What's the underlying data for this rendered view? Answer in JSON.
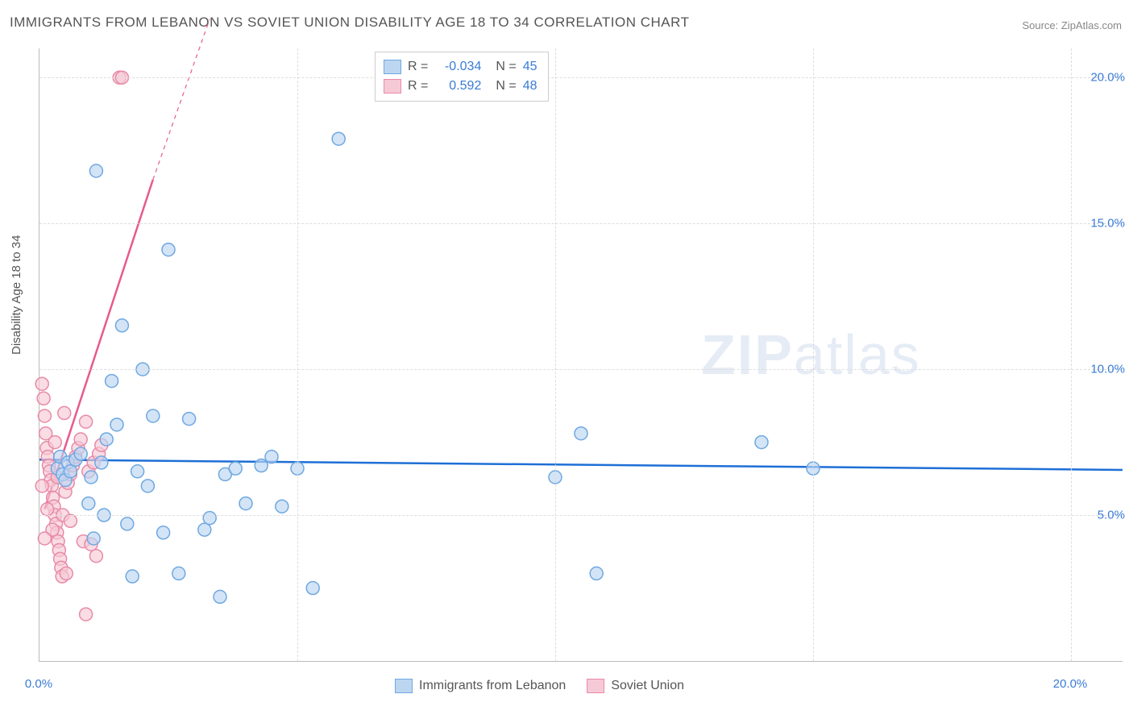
{
  "title": "IMMIGRANTS FROM LEBANON VS SOVIET UNION DISABILITY AGE 18 TO 34 CORRELATION CHART",
  "source": "Source: ZipAtlas.com",
  "yaxis_label": "Disability Age 18 to 34",
  "watermark": {
    "bold": "ZIP",
    "light": "atlas"
  },
  "chart": {
    "type": "scatter",
    "background_color": "#ffffff",
    "grid_color": "#dddddd",
    "axis_color": "#bbbbbb",
    "xlim": [
      0,
      21
    ],
    "ylim": [
      0,
      21
    ],
    "xticks": [
      0,
      5,
      10,
      15,
      20
    ],
    "yticks": [
      5,
      10,
      15,
      20
    ],
    "xtick_labels": [
      "0.0%",
      "",
      "",
      "",
      "20.0%"
    ],
    "ytick_labels": [
      "5.0%",
      "10.0%",
      "15.0%",
      "20.0%"
    ],
    "xtick_major_labels": {
      "0": "0.0%",
      "20": "20.0%"
    },
    "marker_radius": 8,
    "marker_stroke_width": 1.5,
    "series": [
      {
        "name": "Immigrants from Lebanon",
        "color_fill": "#bcd6f2",
        "color_stroke": "#6fa8e0",
        "r": -0.034,
        "n": 45,
        "trend": {
          "x1": 0,
          "y1": 6.9,
          "x2": 21,
          "y2": 6.55,
          "color": "#1e6fd6",
          "width": 2.5
        },
        "points": [
          [
            0.35,
            6.6
          ],
          [
            0.4,
            7.0
          ],
          [
            0.45,
            6.4
          ],
          [
            0.5,
            6.2
          ],
          [
            0.55,
            6.8
          ],
          [
            0.6,
            6.5
          ],
          [
            0.7,
            6.9
          ],
          [
            0.8,
            7.1
          ],
          [
            1.0,
            6.3
          ],
          [
            1.1,
            16.8
          ],
          [
            1.2,
            6.8
          ],
          [
            1.3,
            7.6
          ],
          [
            1.4,
            9.6
          ],
          [
            1.5,
            8.1
          ],
          [
            1.6,
            11.5
          ],
          [
            1.7,
            4.7
          ],
          [
            1.8,
            2.9
          ],
          [
            1.9,
            6.5
          ],
          [
            2.0,
            10.0
          ],
          [
            2.2,
            8.4
          ],
          [
            2.4,
            4.4
          ],
          [
            2.5,
            14.1
          ],
          [
            2.7,
            3.0
          ],
          [
            2.9,
            8.3
          ],
          [
            3.2,
            4.5
          ],
          [
            3.3,
            4.9
          ],
          [
            3.5,
            2.2
          ],
          [
            3.6,
            6.4
          ],
          [
            3.8,
            6.6
          ],
          [
            4.0,
            5.4
          ],
          [
            4.3,
            6.7
          ],
          [
            4.5,
            7.0
          ],
          [
            4.7,
            5.3
          ],
          [
            5.0,
            6.6
          ],
          [
            5.3,
            2.5
          ],
          [
            5.8,
            17.9
          ],
          [
            10.0,
            6.3
          ],
          [
            10.5,
            7.8
          ],
          [
            10.8,
            3.0
          ],
          [
            14.0,
            7.5
          ],
          [
            15.0,
            6.6
          ],
          [
            0.95,
            5.4
          ],
          [
            1.25,
            5.0
          ],
          [
            1.05,
            4.2
          ],
          [
            2.1,
            6.0
          ]
        ]
      },
      {
        "name": "Soviet Union",
        "color_fill": "#f6c9d6",
        "color_stroke": "#e88aa8",
        "r": 0.592,
        "n": 48,
        "trend": {
          "x1": 0.1,
          "y1": 5.2,
          "x2": 2.2,
          "y2": 16.5,
          "color": "#e75a8e",
          "width": 2.5,
          "dash_after_x": 2.2,
          "dash_x2": 3.3,
          "dash_y2": 22.0
        },
        "points": [
          [
            0.05,
            9.5
          ],
          [
            0.08,
            9.0
          ],
          [
            0.1,
            8.4
          ],
          [
            0.12,
            7.8
          ],
          [
            0.14,
            7.3
          ],
          [
            0.16,
            7.0
          ],
          [
            0.18,
            6.7
          ],
          [
            0.2,
            6.5
          ],
          [
            0.22,
            6.2
          ],
          [
            0.24,
            6.0
          ],
          [
            0.26,
            5.6
          ],
          [
            0.28,
            5.3
          ],
          [
            0.3,
            5.0
          ],
          [
            0.32,
            4.7
          ],
          [
            0.34,
            4.4
          ],
          [
            0.36,
            4.1
          ],
          [
            0.38,
            3.8
          ],
          [
            0.4,
            3.5
          ],
          [
            0.42,
            3.2
          ],
          [
            0.44,
            2.9
          ],
          [
            0.5,
            5.8
          ],
          [
            0.55,
            6.1
          ],
          [
            0.6,
            6.4
          ],
          [
            0.65,
            6.7
          ],
          [
            0.7,
            7.0
          ],
          [
            0.75,
            7.3
          ],
          [
            0.8,
            7.6
          ],
          [
            0.85,
            4.1
          ],
          [
            0.9,
            8.2
          ],
          [
            0.95,
            6.5
          ],
          [
            1.0,
            4.0
          ],
          [
            1.05,
            6.8
          ],
          [
            1.1,
            3.6
          ],
          [
            1.15,
            7.1
          ],
          [
            1.2,
            7.4
          ],
          [
            0.15,
            5.2
          ],
          [
            0.25,
            4.5
          ],
          [
            0.35,
            6.3
          ],
          [
            0.45,
            5.0
          ],
          [
            0.52,
            3.0
          ],
          [
            0.48,
            8.5
          ],
          [
            0.9,
            1.6
          ],
          [
            1.55,
            20.0
          ],
          [
            1.6,
            20.0
          ],
          [
            0.6,
            4.8
          ],
          [
            0.3,
            7.5
          ],
          [
            0.1,
            4.2
          ],
          [
            0.05,
            6.0
          ]
        ]
      }
    ]
  },
  "legend_top": {
    "rows": [
      {
        "swatch_fill": "#bcd6f2",
        "swatch_stroke": "#6fa8e0",
        "r_label": "R =",
        "r_val": "-0.034",
        "n_label": "N =",
        "n_val": "45"
      },
      {
        "swatch_fill": "#f6c9d6",
        "swatch_stroke": "#e88aa8",
        "r_label": "R =",
        "r_val": "0.592",
        "n_label": "N =",
        "n_val": "48"
      }
    ]
  },
  "legend_bottom": [
    {
      "swatch_fill": "#bcd6f2",
      "swatch_stroke": "#6fa8e0",
      "label": "Immigrants from Lebanon"
    },
    {
      "swatch_fill": "#f6c9d6",
      "swatch_stroke": "#e88aa8",
      "label": "Soviet Union"
    }
  ]
}
